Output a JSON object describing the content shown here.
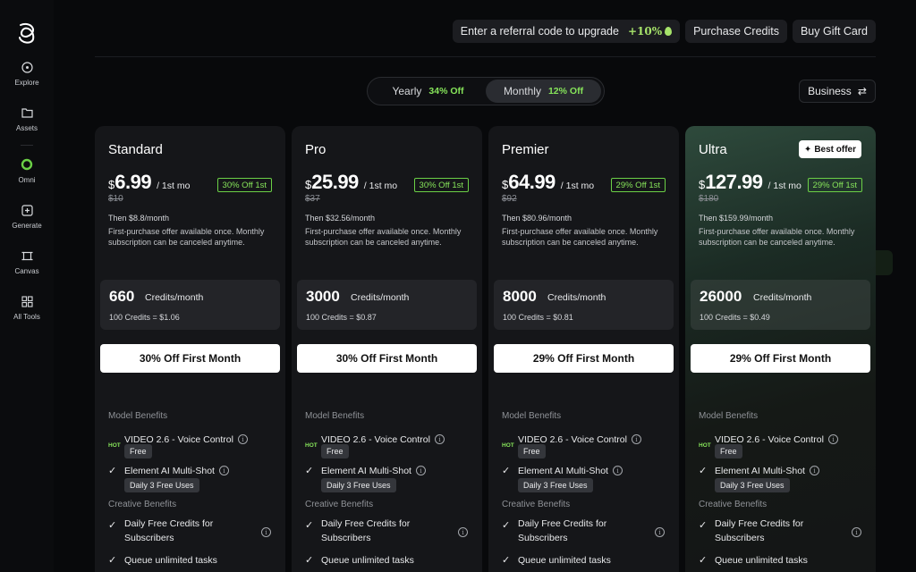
{
  "sidebar": {
    "items": [
      {
        "label": "Explore",
        "icon": "compass-icon"
      },
      {
        "label": "Assets",
        "icon": "folder-icon"
      },
      {
        "label": "Omni",
        "icon": "omni-ring-icon"
      },
      {
        "label": "Generate",
        "icon": "generate-icon"
      },
      {
        "label": "Canvas",
        "icon": "canvas-icon"
      },
      {
        "label": "All Tools",
        "icon": "grid-icon"
      }
    ]
  },
  "topbar": {
    "referral_label": "Enter a referral code to upgrade",
    "referral_bonus": "+10%",
    "purchase_credits": "Purchase Credits",
    "buy_gift_card": "Buy Gift Card"
  },
  "billing_toggle": {
    "yearly_label": "Yearly",
    "yearly_off": "34% Off",
    "monthly_label": "Monthly",
    "monthly_off": "12% Off",
    "selected": "Monthly"
  },
  "business_button": "Business",
  "colors": {
    "accent_green": "#86e45a",
    "card_bg": "#151619",
    "page_bg": "#08090b"
  },
  "common": {
    "currency": "$",
    "per": "/ 1st mo",
    "note": "First-purchase offer available once. Monthly subscription can be canceled anytime.",
    "credits_per_month": "Credits/month",
    "model_benefits": "Model Benefits",
    "hot": "HOT",
    "video_feature": "VIDEO 2.6 - Voice Control",
    "free": "Free",
    "element_feature": "Element AI Multi-Shot",
    "daily_uses": "Daily 3 Free Uses",
    "creative_benefits": "Creative Benefits",
    "daily_credits": "Daily Free Credits for Subscribers",
    "queue": "Queue unlimited tasks"
  },
  "plans": [
    {
      "name": "Standard",
      "price": "6.99",
      "discount": "30% Off 1st",
      "original": "$10",
      "then": "Then $8.8/month",
      "credits": "660",
      "rate": "100 Credits = $1.06",
      "cta": "30% Off First Month"
    },
    {
      "name": "Pro",
      "price": "25.99",
      "discount": "30% Off 1st",
      "original": "$37",
      "then": "Then $32.56/month",
      "credits": "3000",
      "rate": "100 Credits = $0.87",
      "cta": "30% Off First Month"
    },
    {
      "name": "Premier",
      "price": "64.99",
      "discount": "29% Off 1st",
      "original": "$92",
      "then": "Then $80.96/month",
      "credits": "8000",
      "rate": "100 Credits = $0.81",
      "cta": "29% Off First Month"
    },
    {
      "name": "Ultra",
      "price": "127.99",
      "discount": "29% Off 1st",
      "original": "$180",
      "then": "Then $159.99/month",
      "credits": "26000",
      "rate": "100 Credits = $0.49",
      "cta": "29% Off First Month",
      "badge": "Best offer"
    }
  ]
}
